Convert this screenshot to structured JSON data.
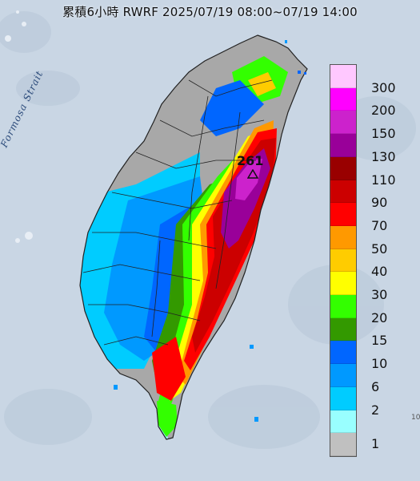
{
  "header": {
    "title": "累積6小時 RWRF 2025/07/19 08:00~07/19 14:00"
  },
  "map": {
    "strait_label": "Formosa Strait",
    "peak_value": "261",
    "corner_mark": "10",
    "colors": {
      "sea": "#c9d6e4",
      "land_base": "#a8a8a8",
      "county_lines": "#222222"
    }
  },
  "legend": {
    "levels": [
      {
        "label": "300",
        "color": "#ffc8ff"
      },
      {
        "label": "200",
        "color": "#ff00ff"
      },
      {
        "label": "150",
        "color": "#cc22cc"
      },
      {
        "label": "130",
        "color": "#990099"
      },
      {
        "label": "110",
        "color": "#990000"
      },
      {
        "label": "90",
        "color": "#cc0000"
      },
      {
        "label": "70",
        "color": "#ff0000"
      },
      {
        "label": "50",
        "color": "#ff9900"
      },
      {
        "label": "40",
        "color": "#ffcc00"
      },
      {
        "label": "30",
        "color": "#ffff00"
      },
      {
        "label": "20",
        "color": "#33ff00"
      },
      {
        "label": "15",
        "color": "#339900"
      },
      {
        "label": "10",
        "color": "#0066ff"
      },
      {
        "label": "6",
        "color": "#0099ff"
      },
      {
        "label": "2",
        "color": "#00ccff"
      },
      {
        "label": "1",
        "color": "#99ffff"
      },
      {
        "label": "",
        "color": "#c0c0c0"
      }
    ]
  }
}
